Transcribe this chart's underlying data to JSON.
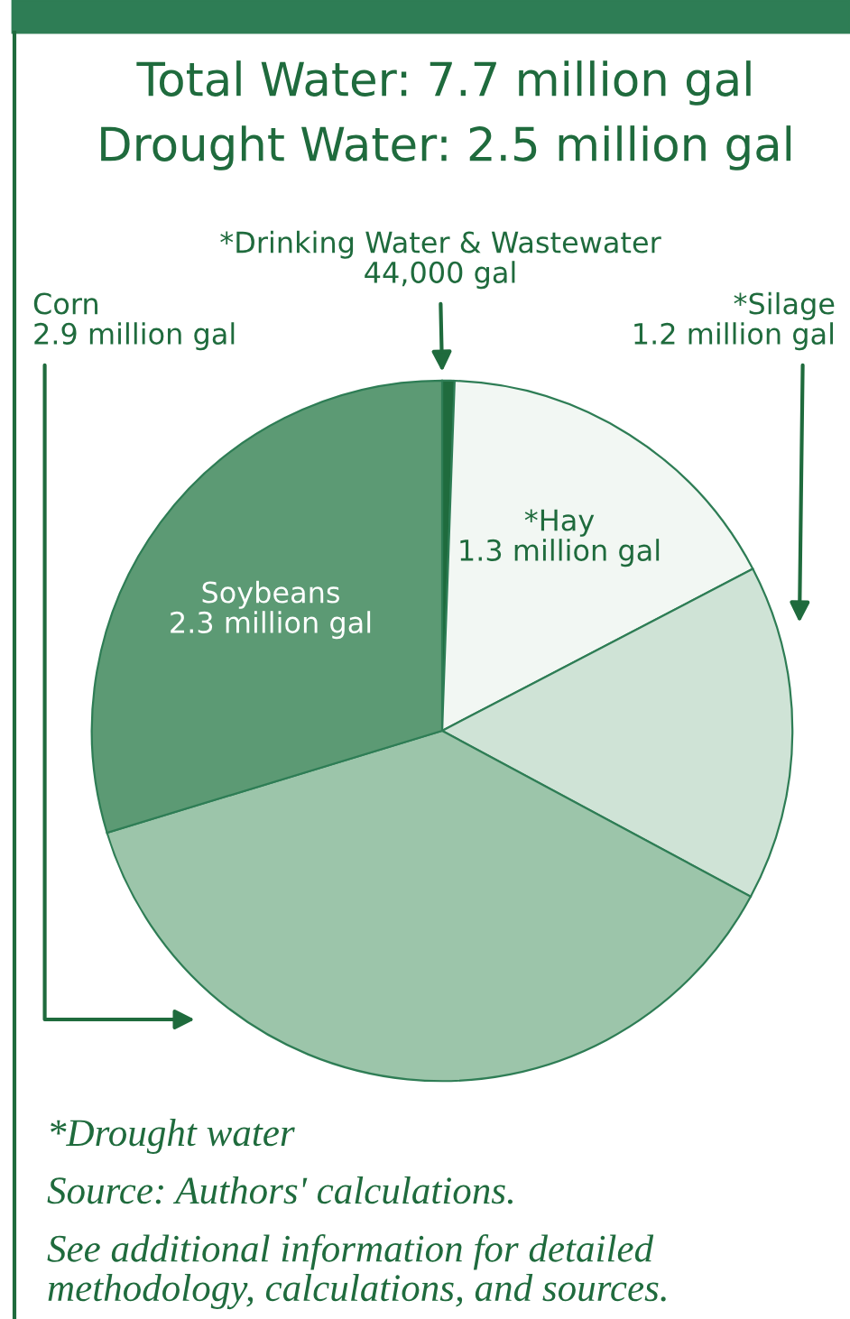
{
  "chart_data": {
    "type": "pie",
    "title": "Total Water: 7.7 million gal",
    "subtitle": "Drought Water: 2.5 million gal",
    "categories": [
      "*Drinking Water & Wastewater",
      "*Hay",
      "*Silage",
      "Corn",
      "Soybeans"
    ],
    "values": [
      44000,
      1300000,
      1200000,
      2900000,
      2300000
    ],
    "value_labels": [
      "44,000 gal",
      "1.3 million gal",
      "1.2 million gal",
      "2.9 million gal",
      "2.3 million gal"
    ],
    "colors": [
      "#1f6b3d",
      "#f2f7f3",
      "#cfe3d6",
      "#9cc5aa",
      "#5c9a74"
    ],
    "annotations": [
      "*Drought water",
      "Source: Authors' calculations.",
      "See additional information for detailed\nmethodology, calculations, and sources."
    ]
  }
}
